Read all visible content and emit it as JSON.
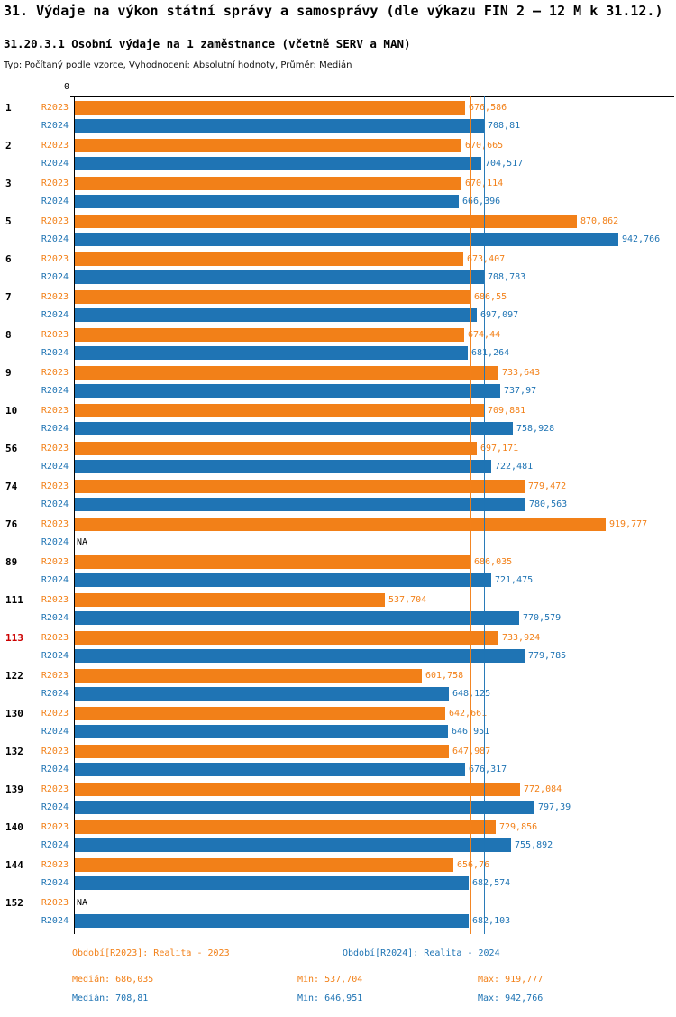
{
  "header": {
    "title": "31. Výdaje na výkon státní správy a samosprávy (dle výkazu FIN 2 – 12 M k 31.12.)",
    "subtitle": "31.20.3.1 Osobní výdaje na 1 zaměstnance (včetně SERV a MAN)",
    "meta": "Typ: Počítaný podle vzorce, Vyhodnocení: Absolutní hodnoty, Průměr: Medián"
  },
  "chart_data": {
    "type": "bar",
    "orientation": "horizontal",
    "axis_origin_label": "0",
    "value_format": "czech-decimal-comma (thousands CZK)",
    "highlighted_category": "113",
    "na_label": "NA",
    "series": [
      {
        "name": "R2023",
        "legend": "Období[R2023]: Realita - 2023",
        "color": "#F28018",
        "median": 686.035,
        "min": 537.704,
        "max": 919.777
      },
      {
        "name": "R2024",
        "legend": "Období[R2024]: Realita - 2024",
        "color": "#1F74B4",
        "median": 708.81,
        "min": 646.951,
        "max": 942.766
      }
    ],
    "categories": [
      "1",
      "2",
      "3",
      "5",
      "6",
      "7",
      "8",
      "9",
      "10",
      "56",
      "74",
      "76",
      "89",
      "111",
      "113",
      "122",
      "130",
      "132",
      "139",
      "140",
      "144",
      "152"
    ],
    "rows": [
      {
        "id": "1",
        "r2023": "676,586",
        "r2024": "708,81"
      },
      {
        "id": "2",
        "r2023": "670,665",
        "r2024": "704,517"
      },
      {
        "id": "3",
        "r2023": "670,114",
        "r2024": "666,396"
      },
      {
        "id": "5",
        "r2023": "870,862",
        "r2024": "942,766"
      },
      {
        "id": "6",
        "r2023": "673,407",
        "r2024": "708,783"
      },
      {
        "id": "7",
        "r2023": "686,55",
        "r2024": "697,097"
      },
      {
        "id": "8",
        "r2023": "674,44",
        "r2024": "681,264"
      },
      {
        "id": "9",
        "r2023": "733,643",
        "r2024": "737,97"
      },
      {
        "id": "10",
        "r2023": "709,881",
        "r2024": "758,928"
      },
      {
        "id": "56",
        "r2023": "697,171",
        "r2024": "722,481"
      },
      {
        "id": "74",
        "r2023": "779,472",
        "r2024": "780,563"
      },
      {
        "id": "76",
        "r2023": "919,777",
        "r2024": "NA"
      },
      {
        "id": "89",
        "r2023": "686,035",
        "r2024": "721,475"
      },
      {
        "id": "111",
        "r2023": "537,704",
        "r2024": "770,579"
      },
      {
        "id": "113",
        "r2023": "733,924",
        "r2024": "779,785"
      },
      {
        "id": "122",
        "r2023": "601,758",
        "r2024": "648,125"
      },
      {
        "id": "130",
        "r2023": "642,661",
        "r2024": "646,951"
      },
      {
        "id": "132",
        "r2023": "647,987",
        "r2024": "676,317"
      },
      {
        "id": "139",
        "r2023": "772,084",
        "r2024": "797,39"
      },
      {
        "id": "140",
        "r2023": "729,856",
        "r2024": "755,892"
      },
      {
        "id": "144",
        "r2023": "656,76",
        "r2024": "682,574"
      },
      {
        "id": "152",
        "r2023": "NA",
        "r2024": "682,103"
      }
    ],
    "stats": {
      "r2023": {
        "median": "Medián: 686,035",
        "min": "Min: 537,704",
        "max": "Max: 919,777"
      },
      "r2024": {
        "median": "Medián: 708,81",
        "min": "Min: 646,951",
        "max": "Max: 942,766"
      }
    }
  }
}
